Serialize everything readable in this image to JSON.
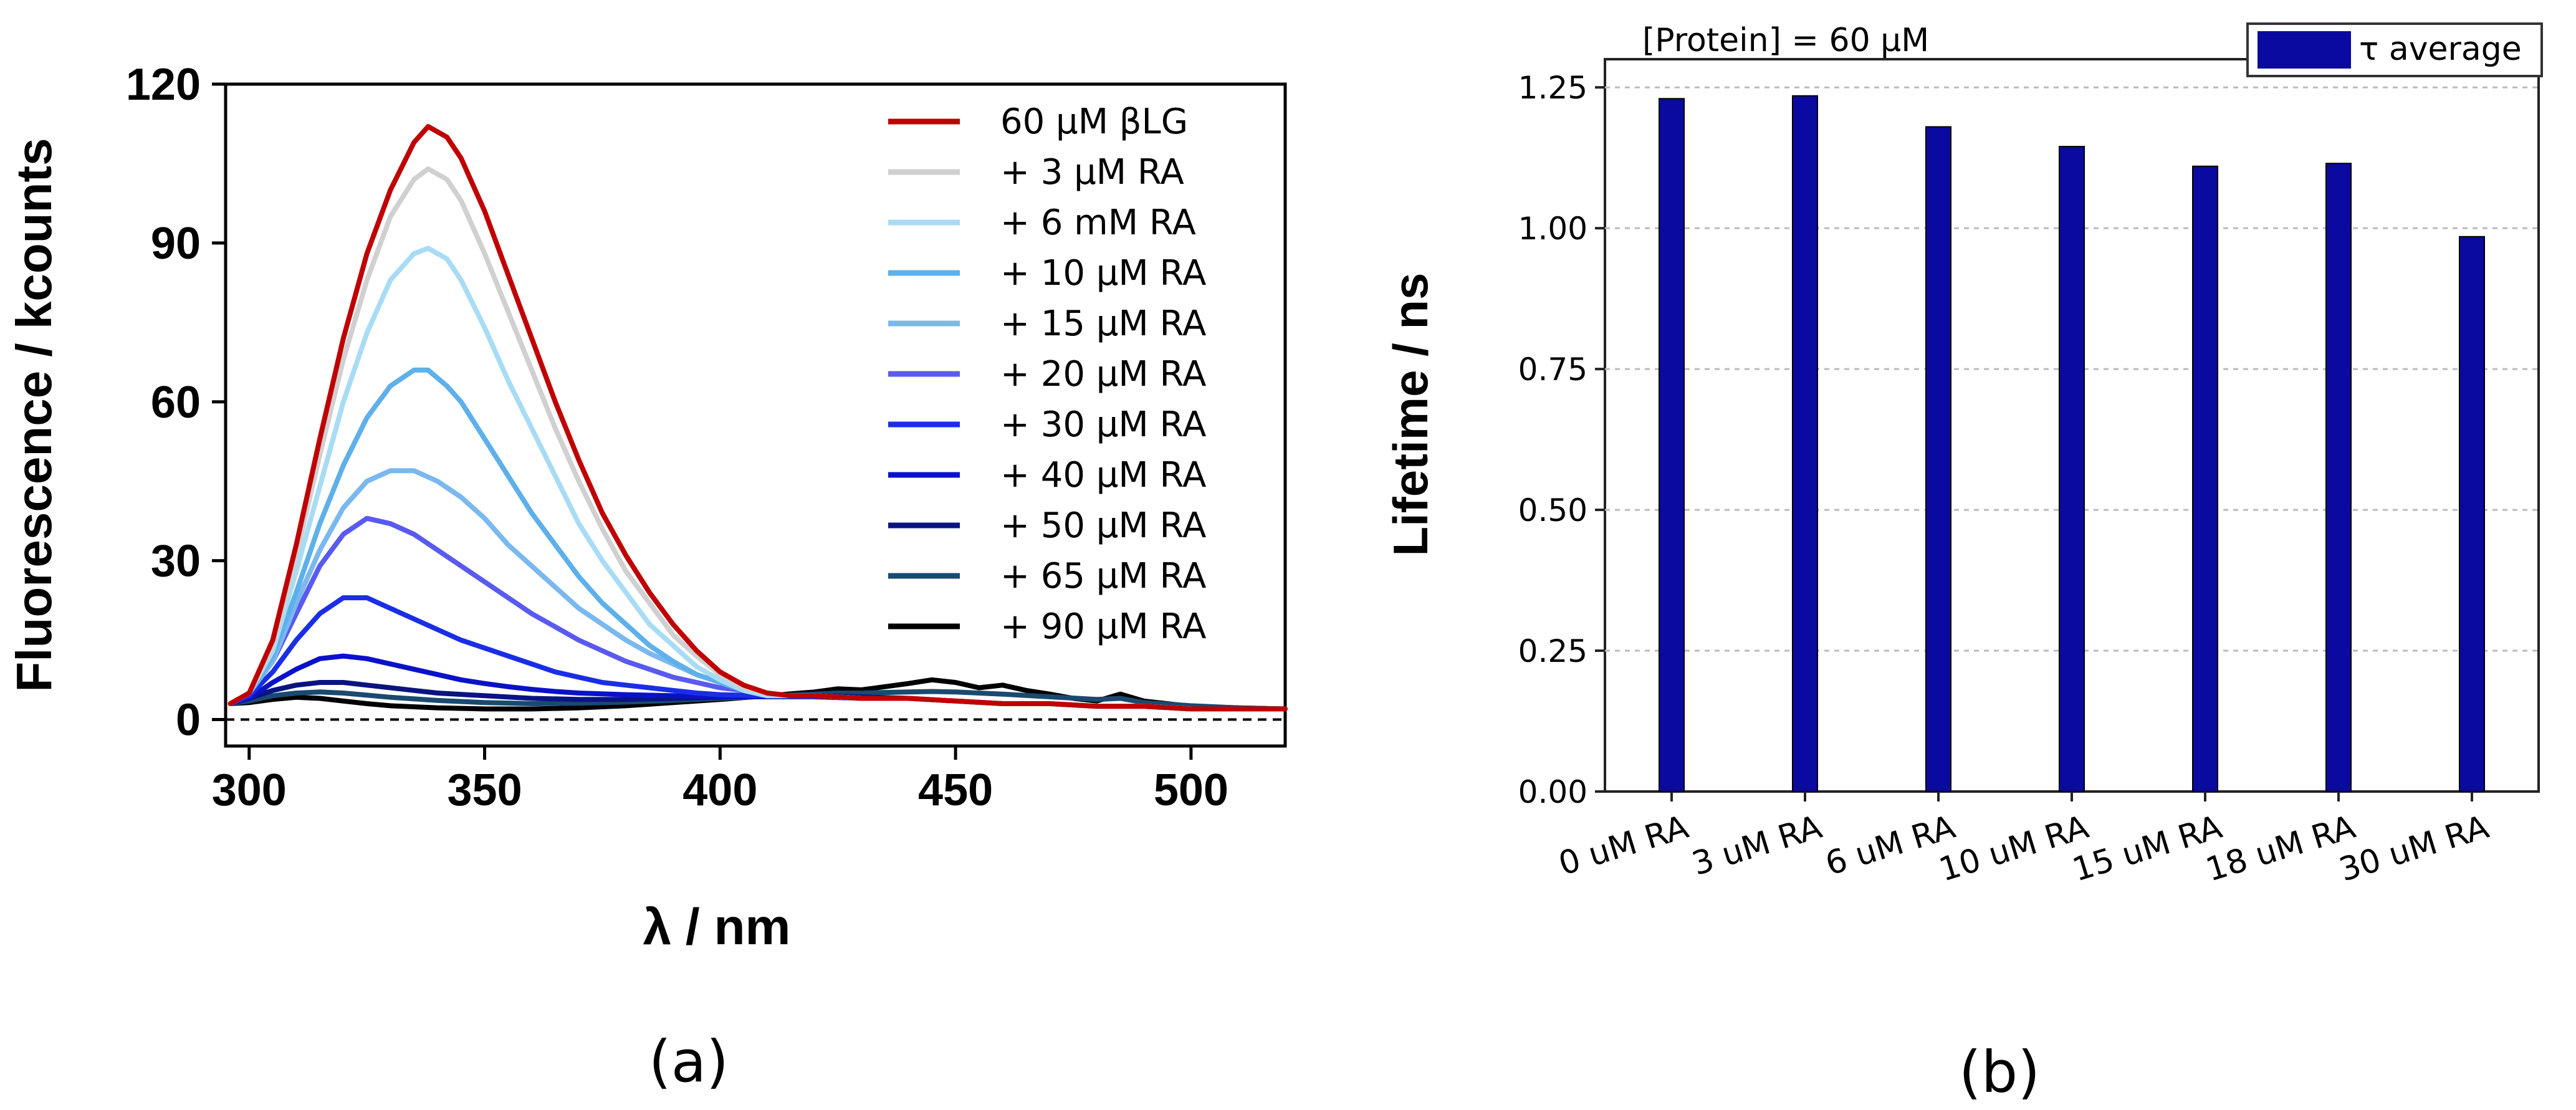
{
  "chart_data": [
    {
      "id": "a",
      "type": "line",
      "panel_label": "(a)",
      "title": "",
      "xlabel": "λ / nm",
      "ylabel": "Fluorescence / kcounts",
      "xlim": [
        295,
        520
      ],
      "ylim": [
        -5,
        120
      ],
      "xticks": [
        300,
        350,
        400,
        450,
        500
      ],
      "yticks": [
        0,
        30,
        60,
        90,
        120
      ],
      "xtick_labels": [
        "300",
        "350",
        "400",
        "450",
        "500"
      ],
      "ytick_labels": [
        "0",
        "30",
        "60",
        "90",
        "120"
      ],
      "baseline": 0,
      "legend_position": "top-right",
      "series": [
        {
          "name": "60 μM βLG",
          "color": "#c00000",
          "x": [
            296,
            300,
            305,
            310,
            315,
            320,
            325,
            330,
            335,
            338,
            342,
            345,
            350,
            355,
            360,
            365,
            370,
            375,
            380,
            385,
            390,
            395,
            400,
            405,
            410,
            415,
            420,
            430,
            440,
            450,
            460,
            470,
            480,
            490,
            500,
            510,
            520
          ],
          "y": [
            3,
            5,
            15,
            33,
            53,
            72,
            88,
            100,
            109,
            112,
            110,
            106,
            96,
            84,
            72,
            60,
            49,
            39,
            31,
            24,
            18,
            13,
            9,
            6.5,
            5,
            4.5,
            4.5,
            4,
            4,
            3.5,
            3,
            3,
            2.5,
            2.5,
            2,
            2,
            2
          ]
        },
        {
          "name": "+ 3 μM RA",
          "color": "#d0d0d0",
          "x": [
            296,
            300,
            305,
            310,
            315,
            320,
            325,
            330,
            335,
            338,
            342,
            345,
            350,
            355,
            360,
            365,
            370,
            375,
            380,
            385,
            390,
            395,
            400,
            405,
            410,
            415,
            420,
            430,
            440,
            450,
            460,
            470,
            480,
            490,
            500,
            510,
            520
          ],
          "y": [
            3,
            5,
            14,
            31,
            50,
            68,
            83,
            95,
            102,
            104,
            102,
            98,
            88,
            77,
            66,
            55,
            45,
            36,
            28,
            22,
            16,
            12,
            8.5,
            6,
            5,
            4.5,
            4.5,
            4,
            4,
            3.5,
            3,
            3,
            2.5,
            2.5,
            2,
            2,
            2
          ]
        },
        {
          "name": "+ 6 mM RA",
          "color": "#a8dcf4",
          "x": [
            296,
            300,
            305,
            310,
            315,
            320,
            325,
            330,
            335,
            338,
            342,
            345,
            350,
            355,
            360,
            365,
            370,
            375,
            380,
            385,
            390,
            395,
            400,
            405,
            410,
            415,
            420,
            430,
            440,
            450,
            460,
            470,
            480,
            490,
            500,
            510,
            520
          ],
          "y": [
            3,
            5,
            13,
            28,
            44,
            60,
            73,
            83,
            88,
            89,
            87,
            83,
            74,
            64,
            55,
            46,
            37,
            30,
            24,
            18,
            14,
            10,
            7.5,
            5.5,
            4.5,
            4.5,
            4.5,
            4,
            4,
            3.5,
            3,
            3,
            2.5,
            2.5,
            2,
            2,
            2
          ]
        },
        {
          "name": "+ 10 μM RA",
          "color": "#5eb0ea",
          "x": [
            296,
            300,
            305,
            310,
            315,
            320,
            325,
            330,
            335,
            338,
            342,
            345,
            350,
            355,
            360,
            365,
            370,
            375,
            380,
            385,
            390,
            395,
            400,
            405,
            410,
            415,
            420,
            430,
            440,
            450,
            460,
            470,
            480,
            490,
            500,
            510,
            520
          ],
          "y": [
            3,
            5,
            12,
            24,
            37,
            48,
            57,
            63,
            66,
            66,
            63,
            60,
            53,
            46,
            39,
            33,
            27,
            22,
            18,
            14,
            11,
            8.5,
            7,
            5.5,
            4.5,
            4.5,
            4.5,
            4,
            4,
            3.5,
            3,
            3,
            2.5,
            2.5,
            2,
            2,
            2
          ]
        },
        {
          "name": "+ 15 μM RA",
          "color": "#7ab8ef",
          "x": [
            296,
            300,
            305,
            310,
            315,
            320,
            325,
            330,
            335,
            340,
            345,
            350,
            355,
            360,
            365,
            370,
            375,
            380,
            385,
            390,
            395,
            400,
            405,
            410,
            415,
            420,
            430,
            440,
            450,
            460,
            470,
            480,
            490,
            500,
            510,
            520
          ],
          "y": [
            3,
            5,
            11,
            22,
            32,
            40,
            45,
            47,
            47,
            45,
            42,
            38,
            33,
            29,
            25,
            21,
            18,
            15,
            12.5,
            10.5,
            8.5,
            7,
            6,
            5,
            4.5,
            4.5,
            4,
            4,
            3.5,
            3,
            3,
            2.5,
            2.5,
            2,
            2,
            2
          ]
        },
        {
          "name": "+ 20 μM RA",
          "color": "#5a5af0",
          "x": [
            296,
            300,
            305,
            310,
            315,
            320,
            325,
            330,
            335,
            340,
            345,
            350,
            355,
            360,
            365,
            370,
            375,
            380,
            385,
            390,
            395,
            400,
            405,
            410,
            415,
            420,
            430,
            440,
            450,
            460,
            470,
            480,
            490,
            500,
            510,
            520
          ],
          "y": [
            3,
            5,
            11,
            20,
            29,
            35,
            38,
            37,
            35,
            32,
            29,
            26,
            23,
            20,
            17.5,
            15,
            13,
            11,
            9.5,
            8,
            7,
            6,
            5.5,
            5,
            4.5,
            4.5,
            4,
            4,
            3.5,
            3,
            3,
            2.5,
            2.5,
            2,
            2,
            2
          ]
        },
        {
          "name": "+ 30 μM RA",
          "color": "#1a2ee6",
          "x": [
            296,
            300,
            305,
            310,
            315,
            320,
            325,
            330,
            335,
            340,
            345,
            350,
            355,
            360,
            365,
            370,
            375,
            380,
            385,
            390,
            395,
            400,
            410,
            420,
            430,
            440,
            450,
            460,
            470,
            480,
            490,
            500,
            510,
            520
          ],
          "y": [
            3,
            4.5,
            9,
            15,
            20,
            23,
            23,
            21,
            19,
            17,
            15,
            13.5,
            12,
            10.5,
            9,
            8,
            7,
            6.5,
            6,
            5.5,
            5,
            4.7,
            4.5,
            4.5,
            4,
            4,
            3.5,
            3,
            3,
            2.5,
            2.5,
            2,
            2,
            2
          ]
        },
        {
          "name": "+ 40 μM RA",
          "color": "#0a12c8",
          "x": [
            296,
            300,
            305,
            310,
            315,
            320,
            325,
            330,
            335,
            340,
            345,
            350,
            355,
            360,
            365,
            370,
            380,
            390,
            400,
            410,
            420,
            430,
            440,
            450,
            460,
            470,
            480,
            490,
            500,
            510,
            520
          ],
          "y": [
            3,
            4,
            7,
            9.5,
            11.5,
            12,
            11.5,
            10.5,
            9.5,
            8.5,
            7.5,
            6.8,
            6.2,
            5.7,
            5.3,
            5,
            4.7,
            4.5,
            4.3,
            4.3,
            4.3,
            4,
            4,
            3.5,
            3,
            3,
            2.5,
            2.5,
            2,
            2,
            2
          ]
        },
        {
          "name": "+ 50 μM RA",
          "color": "#0a1480",
          "x": [
            296,
            300,
            305,
            310,
            315,
            320,
            325,
            330,
            335,
            340,
            350,
            360,
            370,
            380,
            390,
            400,
            410,
            420,
            430,
            440,
            450,
            460,
            470,
            480,
            490,
            500,
            510,
            520
          ],
          "y": [
            3,
            4,
            5.5,
            6.5,
            7,
            7,
            6.5,
            6,
            5.5,
            5,
            4.5,
            4,
            3.8,
            3.8,
            4,
            4.2,
            4.5,
            4.5,
            4.3,
            4,
            3.5,
            3,
            3,
            2.5,
            2.5,
            2,
            2,
            2
          ]
        },
        {
          "name": "+ 65 μM RA",
          "color": "#1a4a70",
          "x": [
            296,
            300,
            305,
            310,
            315,
            320,
            325,
            330,
            340,
            350,
            360,
            370,
            380,
            390,
            400,
            410,
            420,
            425,
            430,
            440,
            445,
            450,
            460,
            470,
            480,
            485,
            490,
            500,
            510,
            520
          ],
          "y": [
            3,
            3.5,
            4.5,
            5,
            5.2,
            5,
            4.6,
            4.2,
            3.6,
            3.2,
            3,
            3.1,
            3.3,
            3.6,
            4,
            4.4,
            4.8,
            5,
            5,
            5.2,
            5.3,
            5.2,
            4.8,
            4.3,
            3.8,
            4,
            3.2,
            2.6,
            2.2,
            2
          ]
        },
        {
          "name": "+ 90 μM RA",
          "color": "#000000",
          "x": [
            296,
            300,
            305,
            310,
            315,
            320,
            325,
            330,
            340,
            350,
            360,
            370,
            380,
            390,
            400,
            410,
            420,
            425,
            430,
            440,
            445,
            450,
            455,
            460,
            465,
            470,
            475,
            480,
            485,
            490,
            500,
            510,
            520
          ],
          "y": [
            3,
            3.2,
            3.8,
            4.2,
            4,
            3.5,
            3,
            2.6,
            2.2,
            2,
            2,
            2.2,
            2.6,
            3.2,
            3.8,
            4.5,
            5.2,
            5.8,
            5.6,
            6.8,
            7.5,
            7,
            6,
            6.5,
            5.5,
            4.8,
            4,
            3.5,
            4.8,
            3.5,
            2.5,
            2.2,
            2
          ]
        }
      ]
    },
    {
      "id": "b",
      "type": "bar",
      "panel_label": "(b)",
      "title": "[Protein] = 60 μM",
      "xlabel": "",
      "ylabel": "Lifetime / ns",
      "ylim": [
        0,
        1.3
      ],
      "yticks": [
        0,
        0.25,
        0.5,
        0.75,
        1.0,
        1.25
      ],
      "ytick_labels": [
        "0.00",
        "0.25",
        "0.50",
        "0.75",
        "1.00",
        "1.25"
      ],
      "grid": true,
      "legend_position": "top-right",
      "categories": [
        "0 uM RA",
        "3 uM RA",
        "6 uM RA",
        "10 uM RA",
        "15 uM RA",
        "18 uM RA",
        "30 uM RA"
      ],
      "series": [
        {
          "name": "τ average",
          "color": "#0a0aa0",
          "values": [
            1.23,
            1.235,
            1.18,
            1.145,
            1.11,
            1.115,
            0.985
          ]
        }
      ]
    }
  ]
}
